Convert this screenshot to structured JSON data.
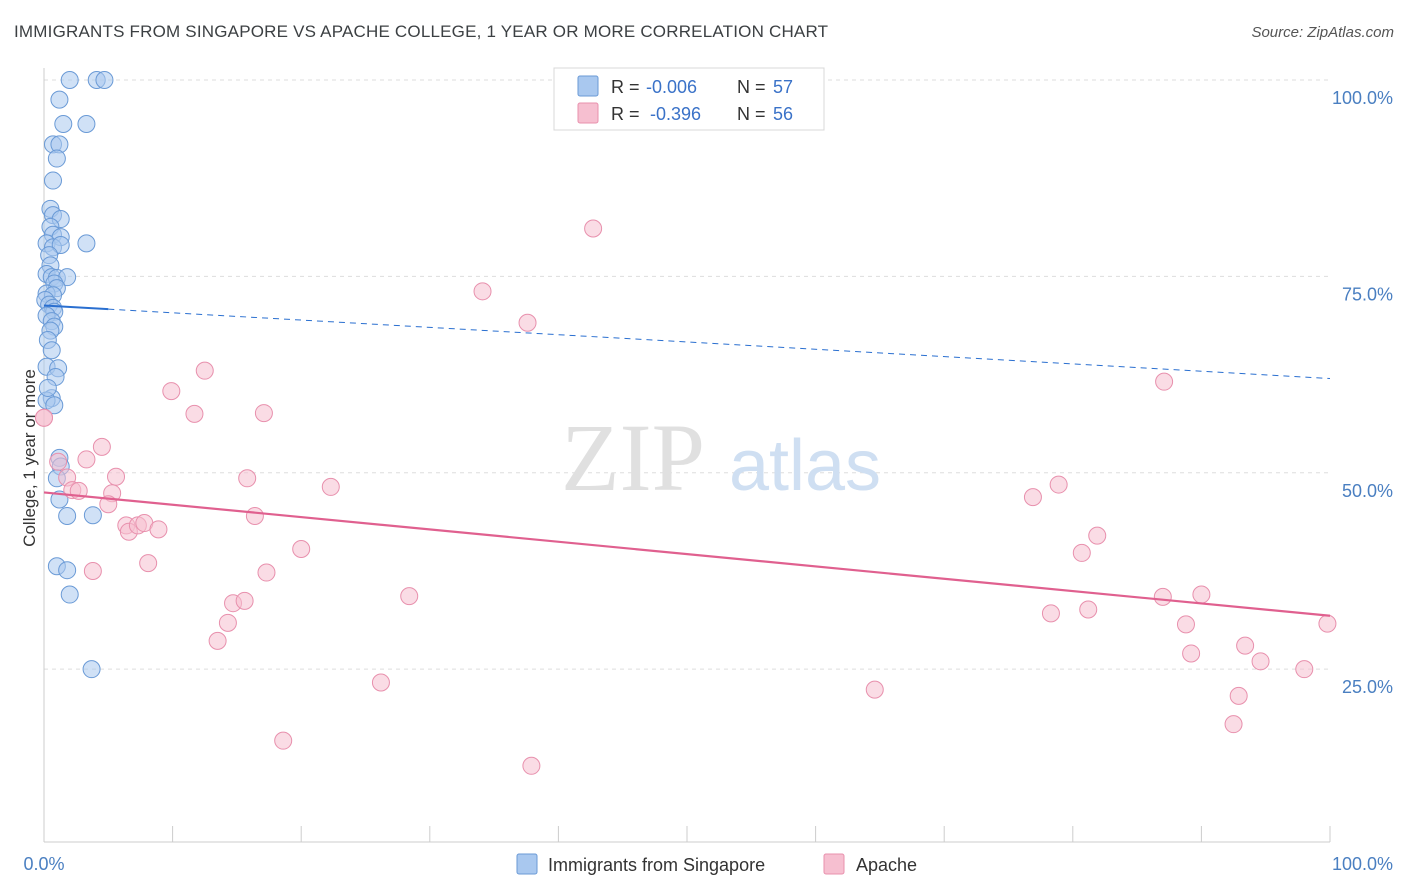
{
  "title": "IMMIGRANTS FROM SINGAPORE VS APACHE COLLEGE, 1 YEAR OR MORE CORRELATION CHART",
  "source": "Source: ZipAtlas.com",
  "watermark": {
    "zip": "ZIP",
    "atlas": "atlas"
  },
  "colors": {
    "blue_fill": "#a9c8ef",
    "blue_stroke": "#6a9ad6",
    "blue_line": "#2a6fd0",
    "pink_fill": "#f6bfd0",
    "pink_stroke": "#e890ad",
    "pink_line": "#e0608f",
    "grid": "#dddddd",
    "tick_text": "#4a7fc1"
  },
  "legend": {
    "r_label": "R =",
    "n_label": "N =",
    "rows": [
      {
        "r": "-0.006",
        "n": "57"
      },
      {
        "r": "-0.396",
        "n": "56"
      }
    ]
  },
  "chart_data": {
    "type": "scatter",
    "title": "IMMIGRANTS FROM SINGAPORE VS APACHE COLLEGE, 1 YEAR OR MORE CORRELATION CHART",
    "xlabel": "",
    "ylabel": "College, 1 year or more",
    "xlim": [
      0,
      100
    ],
    "ylim": [
      3,
      100
    ],
    "x_tick_labels": [
      "0.0%",
      "100.0%"
    ],
    "y_ticks": [
      25,
      50,
      75,
      100
    ],
    "y_tick_labels": [
      "25.0%",
      "50.0%",
      "75.0%",
      "100.0%"
    ],
    "grid": true,
    "legend_position": "top-center",
    "series": [
      {
        "name": "Immigrants from Singapore",
        "r": -0.006,
        "n": 57,
        "trend": {
          "x": [
            0,
            100
          ],
          "y": [
            71.3,
            62.0
          ]
        },
        "points": [
          [
            2.0,
            100.0
          ],
          [
            4.1,
            100.0
          ],
          [
            4.7,
            100.0
          ],
          [
            1.2,
            97.5
          ],
          [
            1.5,
            94.4
          ],
          [
            3.3,
            94.4
          ],
          [
            0.7,
            91.8
          ],
          [
            1.2,
            91.8
          ],
          [
            1.0,
            90.0
          ],
          [
            0.7,
            87.2
          ],
          [
            0.5,
            83.6
          ],
          [
            0.7,
            82.8
          ],
          [
            1.3,
            82.3
          ],
          [
            0.5,
            81.3
          ],
          [
            0.7,
            80.3
          ],
          [
            1.3,
            80.0
          ],
          [
            0.2,
            79.2
          ],
          [
            0.7,
            78.7
          ],
          [
            1.3,
            79.0
          ],
          [
            3.3,
            79.2
          ],
          [
            0.4,
            77.7
          ],
          [
            0.5,
            76.4
          ],
          [
            0.2,
            75.3
          ],
          [
            0.6,
            74.9
          ],
          [
            1.0,
            74.8
          ],
          [
            1.8,
            74.9
          ],
          [
            0.8,
            74.1
          ],
          [
            1.0,
            73.5
          ],
          [
            0.2,
            72.8
          ],
          [
            0.7,
            72.6
          ],
          [
            0.1,
            72.0
          ],
          [
            0.4,
            71.4
          ],
          [
            0.7,
            71.0
          ],
          [
            0.8,
            70.5
          ],
          [
            0.2,
            70.0
          ],
          [
            0.6,
            69.3
          ],
          [
            0.8,
            68.6
          ],
          [
            0.5,
            68.1
          ],
          [
            0.3,
            66.9
          ],
          [
            0.6,
            65.6
          ],
          [
            0.2,
            63.5
          ],
          [
            1.1,
            63.3
          ],
          [
            0.9,
            62.2
          ],
          [
            0.6,
            59.5
          ],
          [
            0.2,
            59.2
          ],
          [
            0.8,
            58.6
          ],
          [
            1.2,
            51.9
          ],
          [
            1.3,
            50.8
          ],
          [
            1.0,
            49.3
          ],
          [
            1.2,
            46.6
          ],
          [
            1.8,
            44.5
          ],
          [
            3.8,
            44.6
          ],
          [
            1.0,
            38.1
          ],
          [
            1.8,
            37.6
          ],
          [
            2.0,
            34.5
          ],
          [
            3.7,
            25.0
          ],
          [
            0.3,
            60.8
          ]
        ]
      },
      {
        "name": "Apache",
        "r": -0.396,
        "n": 56,
        "trend": {
          "x": [
            0,
            100
          ],
          "y": [
            47.5,
            31.8
          ]
        },
        "points": [
          [
            0.0,
            57.0
          ],
          [
            1.1,
            51.4
          ],
          [
            1.8,
            49.4
          ],
          [
            2.2,
            47.8
          ],
          [
            2.7,
            47.7
          ],
          [
            4.5,
            53.3
          ],
          [
            3.3,
            51.7
          ],
          [
            5.6,
            49.5
          ],
          [
            5.3,
            47.4
          ],
          [
            5.0,
            46.0
          ],
          [
            6.4,
            43.3
          ],
          [
            6.6,
            42.5
          ],
          [
            7.3,
            43.3
          ],
          [
            7.8,
            43.6
          ],
          [
            8.9,
            42.8
          ],
          [
            8.1,
            38.5
          ],
          [
            3.8,
            37.5
          ],
          [
            9.9,
            60.4
          ],
          [
            11.7,
            57.5
          ],
          [
            12.5,
            63.0
          ],
          [
            17.1,
            57.6
          ],
          [
            15.8,
            49.3
          ],
          [
            16.4,
            44.5
          ],
          [
            17.3,
            37.3
          ],
          [
            14.7,
            33.4
          ],
          [
            15.6,
            33.7
          ],
          [
            14.3,
            30.9
          ],
          [
            13.5,
            28.6
          ],
          [
            20.0,
            40.3
          ],
          [
            22.3,
            48.2
          ],
          [
            28.4,
            34.3
          ],
          [
            26.2,
            23.3
          ],
          [
            18.6,
            15.9
          ],
          [
            34.1,
            73.1
          ],
          [
            37.6,
            69.1
          ],
          [
            42.7,
            81.1
          ],
          [
            37.9,
            12.7
          ],
          [
            64.6,
            22.4
          ],
          [
            76.9,
            46.9
          ],
          [
            78.9,
            48.5
          ],
          [
            78.3,
            32.1
          ],
          [
            81.2,
            32.6
          ],
          [
            80.7,
            39.8
          ],
          [
            81.9,
            42.0
          ],
          [
            87.1,
            61.6
          ],
          [
            87.0,
            34.2
          ],
          [
            90.0,
            34.5
          ],
          [
            88.8,
            30.7
          ],
          [
            89.2,
            27.0
          ],
          [
            93.4,
            28.0
          ],
          [
            94.6,
            26.0
          ],
          [
            92.5,
            18.0
          ],
          [
            92.9,
            21.6
          ],
          [
            98.0,
            25.0
          ],
          [
            99.8,
            30.8
          ],
          [
            0.0,
            57.0
          ]
        ]
      }
    ]
  },
  "bottom_legend": [
    {
      "label": "Immigrants from Singapore"
    },
    {
      "label": "Apache"
    }
  ]
}
